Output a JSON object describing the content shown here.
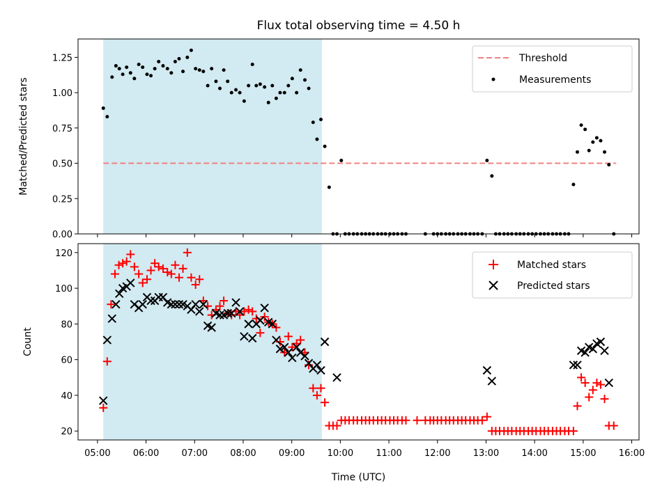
{
  "chart_data": [
    {
      "type": "scatter",
      "title": "Flux total observing time = 4.50 h",
      "xlabel": "",
      "ylabel": "Matched/Predicted stars",
      "xlim": [
        4.6,
        16.15
      ],
      "ylim": [
        0.0,
        1.38
      ],
      "yticks": [
        "0.00",
        "0.25",
        "0.50",
        "0.75",
        "1.00",
        "1.25"
      ],
      "shaded_region": {
        "x0": 5.12,
        "x1": 9.62,
        "color": "#add8e6"
      },
      "threshold": {
        "name": "Threshold",
        "value": 0.5,
        "color": "#f08080"
      },
      "series": [
        {
          "name": "Measurements",
          "marker": "dot",
          "color": "#000000",
          "x": [
            5.12,
            5.2,
            5.3,
            5.38,
            5.45,
            5.52,
            5.6,
            5.68,
            5.76,
            5.85,
            5.93,
            6.02,
            6.1,
            6.18,
            6.26,
            6.35,
            6.44,
            6.52,
            6.6,
            6.68,
            6.76,
            6.85,
            6.93,
            7.02,
            7.1,
            7.18,
            7.27,
            7.35,
            7.44,
            7.52,
            7.6,
            7.68,
            7.76,
            7.85,
            7.93,
            8.02,
            8.11,
            8.19,
            8.27,
            8.35,
            8.44,
            8.52,
            8.6,
            8.68,
            8.76,
            8.85,
            8.93,
            9.01,
            9.1,
            9.18,
            9.27,
            9.35,
            9.44,
            9.52,
            9.6,
            9.68,
            9.77,
            9.85,
            9.93,
            10.02,
            10.1,
            10.18,
            10.27,
            10.35,
            10.44,
            10.52,
            10.6,
            10.68,
            10.77,
            10.85,
            10.93,
            11.02,
            11.1,
            11.18,
            11.27,
            11.35,
            11.75,
            11.92,
            12.0,
            12.08,
            12.17,
            12.25,
            12.33,
            12.42,
            12.5,
            12.58,
            12.67,
            12.75,
            12.83,
            12.92,
            13.02,
            13.12,
            13.2,
            13.28,
            13.37,
            13.45,
            13.53,
            13.62,
            13.7,
            13.78,
            13.87,
            13.95,
            14.03,
            14.12,
            14.2,
            14.28,
            14.37,
            14.45,
            14.53,
            14.62,
            14.7,
            14.8,
            14.88,
            14.96,
            15.04,
            15.12,
            15.2,
            15.28,
            15.36,
            15.44,
            15.53,
            15.63
          ],
          "y": [
            0.89,
            0.83,
            1.11,
            1.19,
            1.17,
            1.13,
            1.18,
            1.14,
            1.1,
            1.2,
            1.18,
            1.13,
            1.12,
            1.17,
            1.22,
            1.19,
            1.17,
            1.14,
            1.22,
            1.24,
            1.15,
            1.25,
            1.3,
            1.17,
            1.16,
            1.15,
            1.05,
            1.17,
            1.08,
            1.03,
            1.16,
            1.08,
            1.0,
            1.02,
            1.0,
            0.94,
            1.05,
            1.2,
            1.05,
            1.06,
            1.04,
            0.93,
            1.05,
            0.96,
            1.0,
            1.0,
            1.05,
            1.1,
            1.0,
            1.16,
            1.09,
            1.03,
            0.79,
            0.67,
            0.81,
            0.62,
            0.33,
            0.0,
            0.0,
            0.52,
            0.0,
            0.0,
            0.0,
            0.0,
            0.0,
            0.0,
            0.0,
            0.0,
            0.0,
            0.0,
            0.0,
            0.0,
            0.0,
            0.0,
            0.0,
            0.0,
            0.0,
            0.0,
            0.0,
            0.0,
            0.0,
            0.0,
            0.0,
            0.0,
            0.0,
            0.0,
            0.0,
            0.0,
            0.0,
            0.0,
            0.52,
            0.41,
            0.0,
            0.0,
            0.0,
            0.0,
            0.0,
            0.0,
            0.0,
            0.0,
            0.0,
            0.0,
            0.0,
            0.0,
            0.0,
            0.0,
            0.0,
            0.0,
            0.0,
            0.0,
            0.0,
            0.35,
            0.58,
            0.77,
            0.74,
            0.59,
            0.65,
            0.68,
            0.66,
            0.58,
            0.49,
            0.0
          ]
        }
      ]
    },
    {
      "type": "scatter",
      "title": "",
      "xlabel": "Time (UTC)",
      "ylabel": "Count",
      "xlim": [
        4.6,
        16.15
      ],
      "ylim": [
        15.0,
        125.0
      ],
      "xticks": [
        "05:00",
        "06:00",
        "07:00",
        "08:00",
        "09:00",
        "10:00",
        "11:00",
        "12:00",
        "13:00",
        "14:00",
        "15:00",
        "16:00"
      ],
      "yticks": [
        "20",
        "40",
        "60",
        "80",
        "100",
        "120"
      ],
      "shaded_region": {
        "x0": 5.12,
        "x1": 9.62,
        "color": "#add8e6"
      },
      "series": [
        {
          "name": "Matched stars",
          "marker": "plus",
          "color": "#ff0000",
          "x": [
            5.12,
            5.2,
            5.28,
            5.36,
            5.44,
            5.52,
            5.6,
            5.68,
            5.76,
            5.85,
            5.93,
            6.02,
            6.1,
            6.18,
            6.26,
            6.35,
            6.44,
            6.52,
            6.6,
            6.68,
            6.76,
            6.85,
            6.93,
            7.02,
            7.1,
            7.18,
            7.27,
            7.35,
            7.44,
            7.52,
            7.6,
            7.68,
            7.76,
            7.85,
            7.93,
            8.02,
            8.11,
            8.19,
            8.27,
            8.35,
            8.44,
            8.52,
            8.6,
            8.68,
            8.76,
            8.85,
            8.93,
            9.01,
            9.1,
            9.18,
            9.27,
            9.35,
            9.44,
            9.52,
            9.6,
            9.68,
            9.77,
            9.85,
            9.93,
            10.02,
            10.1,
            10.18,
            10.27,
            10.35,
            10.44,
            10.52,
            10.6,
            10.68,
            10.77,
            10.85,
            10.93,
            11.02,
            11.1,
            11.18,
            11.27,
            11.35,
            11.58,
            11.75,
            11.85,
            11.92,
            12.0,
            12.08,
            12.17,
            12.25,
            12.33,
            12.42,
            12.5,
            12.58,
            12.67,
            12.75,
            12.83,
            12.92,
            13.02,
            13.12,
            13.2,
            13.28,
            13.37,
            13.45,
            13.53,
            13.62,
            13.7,
            13.78,
            13.87,
            13.95,
            14.03,
            14.12,
            14.2,
            14.28,
            14.37,
            14.45,
            14.53,
            14.62,
            14.7,
            14.8,
            14.88,
            14.96,
            15.04,
            15.12,
            15.2,
            15.28,
            15.36,
            15.44,
            15.53,
            15.63
          ],
          "y": [
            33,
            59,
            91,
            108,
            113,
            114,
            115,
            119,
            112,
            108,
            103,
            105,
            110,
            114,
            112,
            111,
            109,
            108,
            113,
            106,
            111,
            120,
            106,
            102,
            105,
            93,
            90,
            85,
            88,
            90,
            93,
            86,
            85,
            87,
            85,
            87,
            88,
            87,
            83,
            75,
            84,
            81,
            80,
            78,
            70,
            64,
            73,
            67,
            69,
            71,
            64,
            57,
            44,
            40,
            44,
            36,
            23,
            23,
            23,
            26,
            26,
            26,
            26,
            26,
            26,
            26,
            26,
            26,
            26,
            26,
            26,
            26,
            26,
            26,
            26,
            26,
            26,
            26,
            26,
            26,
            26,
            26,
            26,
            26,
            26,
            26,
            26,
            26,
            26,
            26,
            26,
            26,
            28,
            20,
            20,
            20,
            20,
            20,
            20,
            20,
            20,
            20,
            20,
            20,
            20,
            20,
            20,
            20,
            20,
            20,
            20,
            20,
            20,
            20,
            34,
            50,
            47,
            39,
            43,
            47,
            46,
            38,
            23,
            23
          ]
        },
        {
          "name": "Predicted stars",
          "marker": "x",
          "color": "#000000",
          "x": [
            5.12,
            5.2,
            5.3,
            5.38,
            5.45,
            5.52,
            5.6,
            5.68,
            5.76,
            5.85,
            5.93,
            6.02,
            6.1,
            6.18,
            6.26,
            6.35,
            6.44,
            6.52,
            6.6,
            6.68,
            6.76,
            6.85,
            6.93,
            7.02,
            7.1,
            7.18,
            7.27,
            7.35,
            7.44,
            7.52,
            7.6,
            7.68,
            7.76,
            7.85,
            7.93,
            8.02,
            8.11,
            8.19,
            8.27,
            8.35,
            8.44,
            8.52,
            8.6,
            8.68,
            8.76,
            8.85,
            8.93,
            9.01,
            9.1,
            9.18,
            9.27,
            9.35,
            9.44,
            9.52,
            9.6,
            9.68,
            9.93,
            13.02,
            13.12,
            14.8,
            14.88,
            14.96,
            15.04,
            15.12,
            15.2,
            15.28,
            15.36,
            15.44,
            15.53
          ],
          "y": [
            37,
            71,
            83,
            91,
            97,
            100,
            101,
            103,
            91,
            89,
            91,
            95,
            93,
            93,
            95,
            95,
            92,
            91,
            91,
            91,
            91,
            90,
            88,
            91,
            87,
            91,
            79,
            78,
            86,
            85,
            85,
            86,
            86,
            92,
            87,
            73,
            80,
            72,
            80,
            82,
            89,
            81,
            80,
            71,
            66,
            67,
            64,
            61,
            67,
            64,
            62,
            58,
            55,
            57,
            54,
            70,
            50,
            54,
            48,
            57,
            57,
            65,
            64,
            67,
            66,
            69,
            70,
            65,
            47
          ]
        }
      ]
    }
  ]
}
